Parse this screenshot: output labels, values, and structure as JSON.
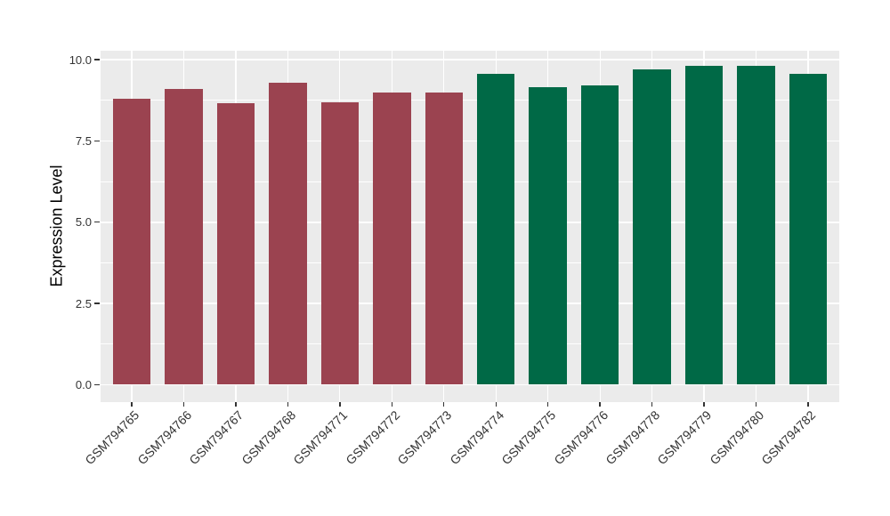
{
  "colors": {
    "page_background": "#FFFFFF",
    "panel_background": "#EBEBEB",
    "gridline": "#FFFFFF",
    "axis_text": "#333333",
    "axis_title": "#000000",
    "group1_fill": "#9B4350",
    "group2_fill": "#006946"
  },
  "chart_data": {
    "type": "bar",
    "title": "",
    "xlabel": "",
    "ylabel": "Expression Level",
    "ylim": [
      0,
      10.3
    ],
    "grid": true,
    "legend_position": "none",
    "ytick_labels": [
      "0.0",
      "2.5",
      "5.0",
      "7.5",
      "10.0"
    ],
    "ytick_values": [
      0,
      2.5,
      5,
      7.5,
      10
    ],
    "minor_gridline_values": [
      1.25,
      3.75,
      6.25,
      8.75
    ],
    "categories": [
      "GSM794765",
      "GSM794766",
      "GSM794767",
      "GSM794768",
      "GSM794771",
      "GSM794772",
      "GSM794773",
      "GSM794774",
      "GSM794775",
      "GSM794776",
      "GSM794778",
      "GSM794779",
      "GSM794780",
      "GSM794782"
    ],
    "values": [
      8.8,
      9.1,
      8.65,
      9.3,
      8.7,
      9.0,
      9.0,
      9.55,
      9.15,
      9.2,
      9.7,
      9.8,
      9.8,
      9.55
    ],
    "bar_colors": [
      "#9B4350",
      "#9B4350",
      "#9B4350",
      "#9B4350",
      "#9B4350",
      "#9B4350",
      "#9B4350",
      "#006946",
      "#006946",
      "#006946",
      "#006946",
      "#006946",
      "#006946",
      "#006946"
    ]
  }
}
